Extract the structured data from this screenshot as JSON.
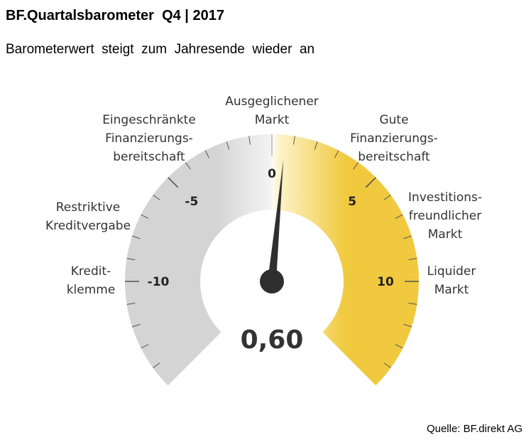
{
  "title": "BF.Quartalsbarometer  Q4 | 2017",
  "subtitle": "Barometerwert  steigt  zum  Jahresende  wieder  an",
  "source": "Quelle: BF.direkt AG",
  "chart_data": {
    "type": "gauge",
    "value": 0.6,
    "value_label": "0,60",
    "range": [
      -15,
      15
    ],
    "ticks": [
      {
        "value": -10,
        "label": "-10"
      },
      {
        "value": -5,
        "label": "-5"
      },
      {
        "value": 0,
        "label": "0"
      },
      {
        "value": 5,
        "label": "5"
      },
      {
        "value": 10,
        "label": "10"
      }
    ],
    "zones": [
      {
        "lines": [
          "Kredit-",
          "klemme"
        ]
      },
      {
        "lines": [
          "Restriktive",
          "Kreditvergabe"
        ]
      },
      {
        "lines": [
          "Eingeschränkte",
          "Finanzierungs-",
          "bereitschaft"
        ]
      },
      {
        "lines": [
          "Ausgeglichener",
          "Markt"
        ]
      },
      {
        "lines": [
          "Gute",
          "Finanzierungs-",
          "bereitschaft"
        ]
      },
      {
        "lines": [
          "Investitions-",
          "freundlicher",
          "Markt"
        ]
      },
      {
        "lines": [
          "Liquider",
          "Markt"
        ]
      }
    ],
    "colors": {
      "negative": "#d4d4d4",
      "neutral": "#fdfaf0",
      "positive": "#f0c93e",
      "needle": "#2f2f2f",
      "ticks": "#555555"
    }
  }
}
